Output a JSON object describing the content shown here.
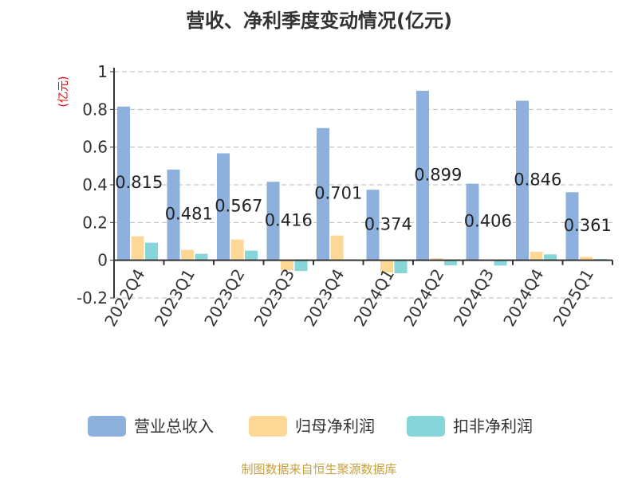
{
  "chart_data": {
    "type": "bar",
    "title": "营收、净利季度变动情况(亿元)",
    "ylabel": "(亿元)",
    "xlabel": "",
    "ylim": [
      -0.2,
      1
    ],
    "yticks": [
      "-0.2",
      "0",
      "0.2",
      "0.4",
      "0.6",
      "0.8",
      "1"
    ],
    "grid": true,
    "legend_position": "bottom",
    "categories": [
      "2022Q4",
      "2023Q1",
      "2023Q2",
      "2023Q3",
      "2023Q4",
      "2024Q1",
      "2024Q2",
      "2024Q3",
      "2024Q4",
      "2025Q1"
    ],
    "series": [
      {
        "name": "营业总收入",
        "color": "#8eb0dc",
        "values": [
          0.815,
          0.481,
          0.567,
          0.416,
          0.701,
          0.374,
          0.899,
          0.406,
          0.846,
          0.361
        ],
        "labels": [
          "0.815",
          "0.481",
          "0.567",
          "0.416",
          "0.701",
          "0.374",
          "0.899",
          "0.406",
          "0.846",
          "0.361"
        ]
      },
      {
        "name": "归母净利润",
        "color": "#fdd796",
        "values": [
          0.127,
          0.055,
          0.11,
          -0.053,
          0.131,
          -0.065,
          0.01,
          0.002,
          0.045,
          0.018
        ]
      },
      {
        "name": "扣非净利润",
        "color": "#86d5d9",
        "values": [
          0.093,
          0.034,
          0.051,
          -0.057,
          0.005,
          -0.069,
          -0.027,
          -0.028,
          0.031,
          0.007
        ]
      }
    ],
    "source": "制图数据来自恒生聚源数据库"
  }
}
